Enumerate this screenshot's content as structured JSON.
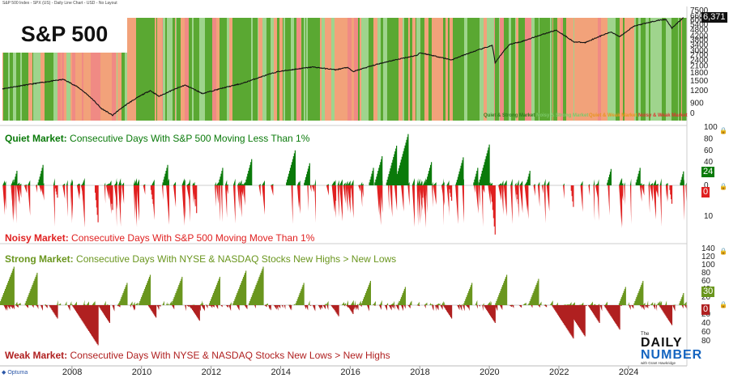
{
  "header": "S&P 500 Index - SPX (US) - Daily Line Chart - USD - No Layout",
  "title": "S&P 500",
  "brand": {
    "small": "The",
    "line1": "DAILY",
    "line2": "NUMBER",
    "byline": "with Grant Hawkridge"
  },
  "footer_logo": "Optuma",
  "colors": {
    "quiet_strong": "#5aa832",
    "noisy_strong": "#9fd48d",
    "quiet_weak": "#f2a27a",
    "noisy_weak": "#f08a84",
    "quiet": "#0a7a0a",
    "noisy": "#e02020",
    "strong": "#6a961e",
    "weak": "#b02020"
  },
  "chart_data": [
    {
      "type": "line",
      "title": "S&P 500",
      "series": [
        {
          "name": "S&P 500",
          "last_value": "6,371"
        }
      ],
      "x": [
        "2006-01",
        "2007-10",
        "2008-03",
        "2008-11",
        "2009-03",
        "2010-04",
        "2010-07",
        "2011-04",
        "2011-10",
        "2012-12",
        "2013-12",
        "2014-12",
        "2015-08",
        "2015-12",
        "2016-02",
        "2016-12",
        "2017-12",
        "2018-01",
        "2018-12",
        "2019-12",
        "2020-02",
        "2020-03",
        "2020-08",
        "2021-01",
        "2021-12",
        "2022-06",
        "2022-10",
        "2023-07",
        "2023-10",
        "2024-03",
        "2024-12",
        "2025-02",
        "2025-04",
        "2025-08"
      ],
      "y": [
        1250,
        1550,
        1300,
        800,
        680,
        1200,
        1050,
        1360,
        1120,
        1420,
        1850,
        2060,
        1930,
        2040,
        1850,
        2260,
        2690,
        2850,
        2420,
        3230,
        3380,
        2240,
        3450,
        3750,
        4780,
        3670,
        3590,
        4590,
        4120,
        5250,
        6050,
        6100,
        4980,
        6371
      ],
      "yticks": [
        0,
        900,
        1200,
        1500,
        1800,
        2100,
        2400,
        2700,
        3000,
        3400,
        3800,
        4200,
        4800,
        5400,
        6000,
        6600,
        7500
      ],
      "yscale": "log",
      "background_regimes": [
        "Quiet & Strong Market",
        "Noisy & Strong Market",
        "Quiet & Weak Market",
        "Noisy & Weak Market"
      ]
    },
    {
      "type": "bar",
      "title": "Quiet Market: Consecutive Days With S&P 500 Moving Less Than 1%",
      "label_bold": "Quiet Market:",
      "label_rest": "Consecutive Days With S&P 500 Moving Less Than 1%",
      "last_value": "24",
      "yticks": [
        0,
        20,
        40,
        60,
        80,
        100
      ],
      "peaks": [
        [
          "2006-06",
          25
        ],
        [
          "2007-03",
          35
        ],
        [
          "2010-10",
          35
        ],
        [
          "2012-05",
          30
        ],
        [
          "2013-03",
          45
        ],
        [
          "2014-06",
          60
        ],
        [
          "2014-11",
          38
        ],
        [
          "2016-09",
          30
        ],
        [
          "2016-12",
          50
        ],
        [
          "2017-05",
          68
        ],
        [
          "2017-09",
          88
        ],
        [
          "2018-05",
          40
        ],
        [
          "2019-04",
          48
        ],
        [
          "2019-09",
          30
        ],
        [
          "2020-01",
          70
        ],
        [
          "2021-03",
          25
        ],
        [
          "2023-07",
          28
        ],
        [
          "2024-05",
          30
        ],
        [
          "2025-08",
          24
        ]
      ]
    },
    {
      "type": "bar",
      "title": "Noisy Market: Consecutive Days With S&P 500 Moving Move Than 1%",
      "label_bold": "Noisy Market:",
      "label_rest": "Consecutive Days With S&P 500 Moving Move Than 1%",
      "last_value": "0",
      "yticks": [
        0,
        10
      ],
      "peaks": [
        [
          "2007-08",
          4
        ],
        [
          "2008-10",
          12
        ],
        [
          "2009-03",
          8
        ],
        [
          "2010-05",
          6
        ],
        [
          "2011-08",
          9
        ],
        [
          "2015-08",
          5
        ],
        [
          "2016-01",
          4
        ],
        [
          "2018-02",
          4
        ],
        [
          "2018-12",
          5
        ],
        [
          "2020-03",
          16
        ],
        [
          "2020-11",
          6
        ],
        [
          "2022-06",
          7
        ],
        [
          "2025-04",
          6
        ]
      ]
    },
    {
      "type": "bar",
      "title": "Strong Market: Consecutive Days With NYSE & NASDAQ Stocks New Highs > New Lows",
      "label_bold": "Strong Market:",
      "label_rest": "Consecutive Days With NYSE & NASDAQ Stocks New Highs > New Lows",
      "last_value": "30",
      "yticks": [
        0,
        20,
        40,
        60,
        80,
        100,
        120,
        140
      ],
      "peaks": [
        [
          "2006-05",
          95
        ],
        [
          "2007-01",
          80
        ],
        [
          "2009-08",
          55
        ],
        [
          "2010-04",
          75
        ],
        [
          "2011-03",
          70
        ],
        [
          "2012-04",
          70
        ],
        [
          "2013-01",
          85
        ],
        [
          "2013-07",
          95
        ],
        [
          "2014-09",
          55
        ],
        [
          "2016-08",
          60
        ],
        [
          "2017-08",
          45
        ],
        [
          "2019-07",
          55
        ],
        [
          "2020-07",
          75
        ],
        [
          "2021-06",
          65
        ],
        [
          "2023-12",
          45
        ],
        [
          "2024-06",
          60
        ],
        [
          "2025-08",
          30
        ]
      ]
    },
    {
      "type": "bar",
      "title": "Weak Market: Consecutive Days With NYSE & NASDAQ Stocks New Lows > New Highs",
      "label_bold": "Weak Market:",
      "label_rest": "Consecutive Days With NYSE & NASDAQ Stocks New Lows > New Highs",
      "last_value": "0",
      "yticks": [
        0,
        20,
        40,
        60,
        80
      ],
      "peaks": [
        [
          "2007-08",
          30
        ],
        [
          "2008-10",
          90
        ],
        [
          "2009-02",
          40
        ],
        [
          "2010-06",
          28
        ],
        [
          "2011-09",
          35
        ],
        [
          "2015-09",
          25
        ],
        [
          "2016-02",
          20
        ],
        [
          "2018-12",
          30
        ],
        [
          "2020-03",
          40
        ],
        [
          "2022-06",
          75
        ],
        [
          "2022-10",
          70
        ],
        [
          "2023-03",
          40
        ],
        [
          "2023-10",
          55
        ],
        [
          "2025-04",
          45
        ]
      ]
    }
  ],
  "x_axis_labels": [
    "2008",
    "2010",
    "2012",
    "2014",
    "2016",
    "2018",
    "2020",
    "2022",
    "2024"
  ]
}
